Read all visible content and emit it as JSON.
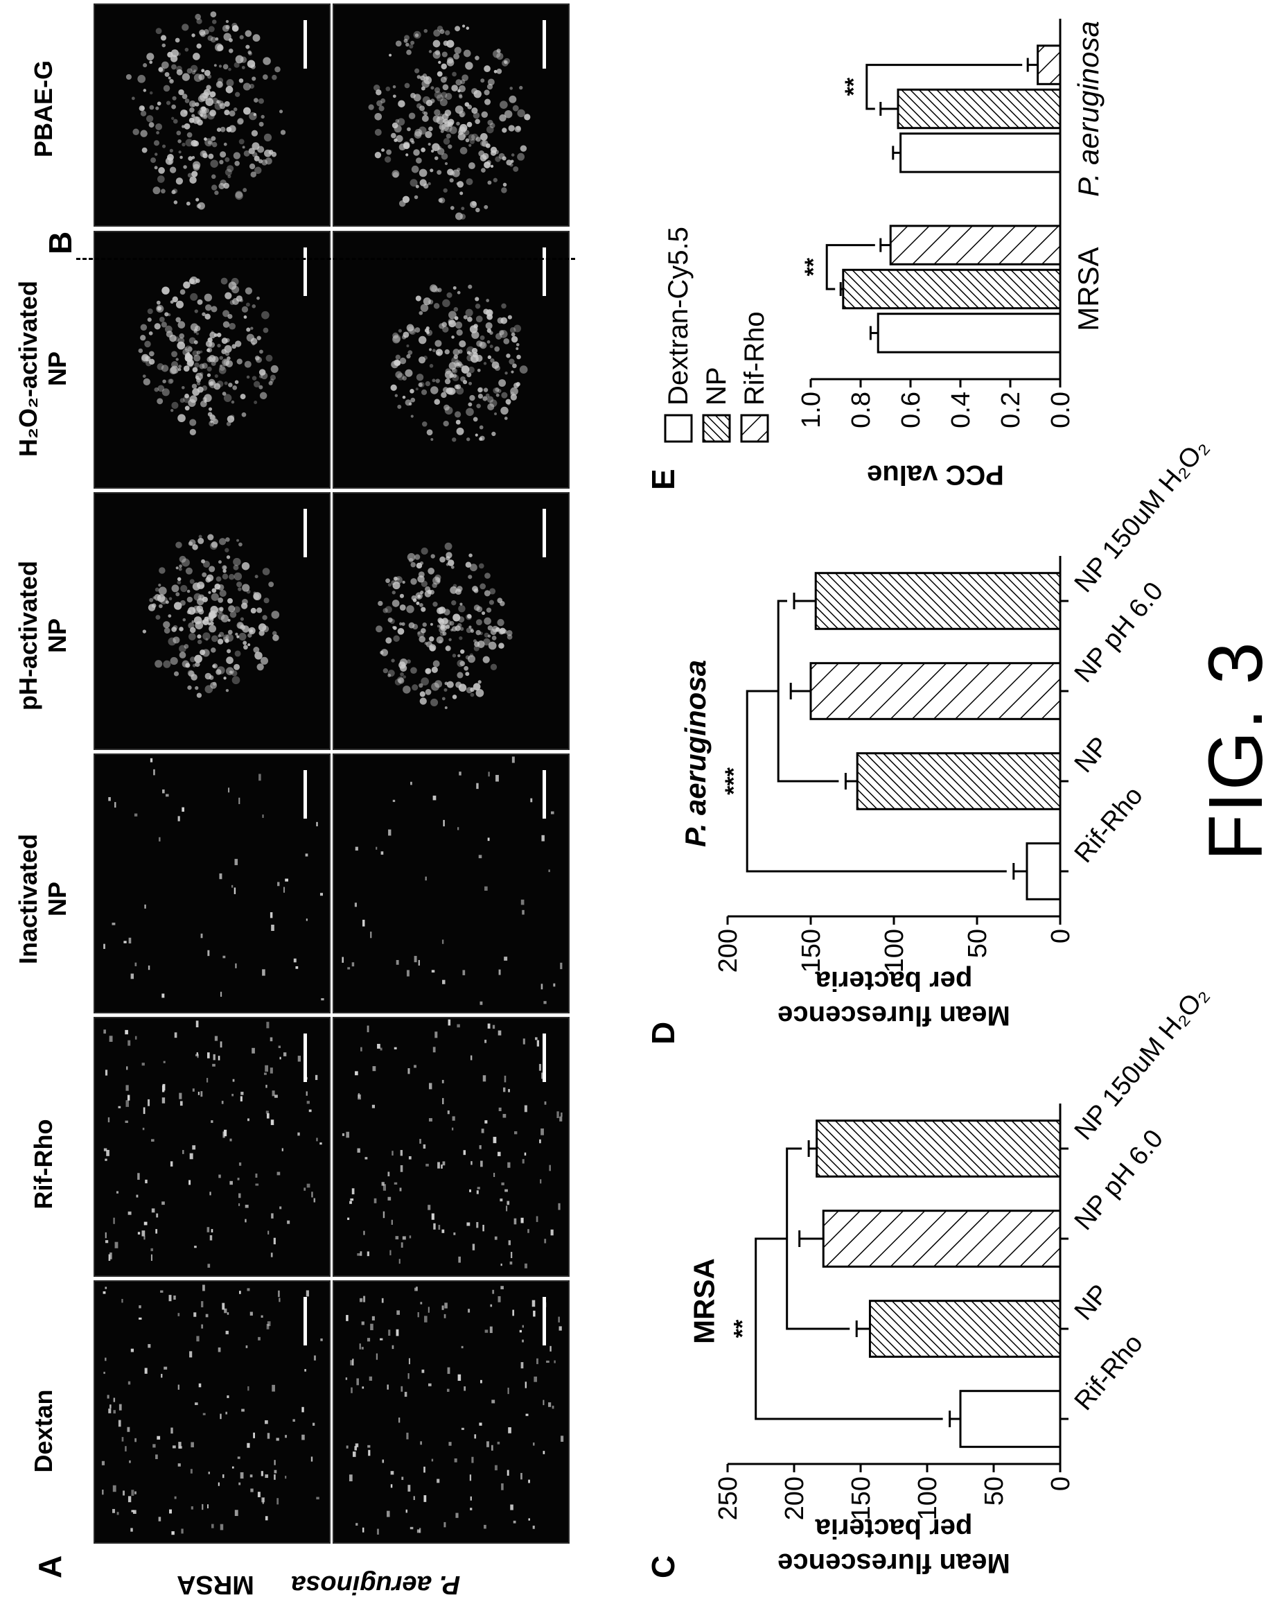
{
  "panels": {
    "A": "A",
    "B": "B",
    "C": "C",
    "D": "D",
    "E": "E"
  },
  "microscopy": {
    "column_headers": [
      "Dextan",
      "Rif-Rho",
      "Inactivated\nNP",
      "pH-activated\nNP",
      "H₂O₂-activated\nNP",
      "PBAE-G"
    ],
    "row_labels": [
      "MRSA",
      "P. aeruginosa"
    ]
  },
  "figure_label": "FIG. 3",
  "chart_data": [
    {
      "panel": "C",
      "type": "bar",
      "title": "MRSA",
      "ylabel": "Mean flurescence\nper bacteria",
      "categories": [
        "Rif-Rho",
        "NP",
        "NP pH 6.0",
        "NP 150uM H₂O₂"
      ],
      "values": [
        75,
        143,
        178,
        183
      ],
      "errors": [
        8,
        10,
        18,
        6
      ],
      "ylim": [
        0,
        250
      ],
      "yticks": [
        0,
        50,
        100,
        150,
        200,
        250
      ],
      "patterns": [
        "empty",
        "hatch-dense",
        "hatch-wide",
        "hatch-dense"
      ],
      "significance": [
        "**"
      ]
    },
    {
      "panel": "D",
      "type": "bar",
      "title": "P. aeruginosa",
      "ylabel": "Mean flurescence\nper bacteria",
      "categories": [
        "Rif-Rho",
        "NP",
        "NP pH 6.0",
        "NP 150uM H₂O₂"
      ],
      "values": [
        20,
        122,
        150,
        147
      ],
      "errors": [
        8,
        7,
        12,
        13
      ],
      "ylim": [
        0,
        200
      ],
      "yticks": [
        0,
        50,
        100,
        150,
        200
      ],
      "patterns": [
        "empty",
        "hatch-dense",
        "hatch-wide",
        "hatch-dense"
      ],
      "significance": [
        "***"
      ]
    },
    {
      "panel": "E",
      "type": "bar",
      "ylabel": "PCC value",
      "groups": [
        "MRSA",
        "P. aeruginosa"
      ],
      "series": [
        {
          "name": "Dextran-Cy5.5",
          "pattern": "empty",
          "values": [
            0.73,
            0.64
          ],
          "errors": [
            0.03,
            0.03
          ]
        },
        {
          "name": "NP",
          "pattern": "hatch-dense",
          "values": [
            0.87,
            0.65
          ],
          "errors": [
            0.01,
            0.07
          ]
        },
        {
          "name": "Rif-Rho",
          "pattern": "hatch-wide",
          "values": [
            0.68,
            0.09
          ],
          "errors": [
            0.04,
            0.04
          ]
        }
      ],
      "ylim": [
        0,
        1.0
      ],
      "yticks": [
        0.0,
        0.2,
        0.4,
        0.6,
        0.8,
        1.0
      ],
      "significance": [
        "**",
        "**"
      ]
    }
  ]
}
